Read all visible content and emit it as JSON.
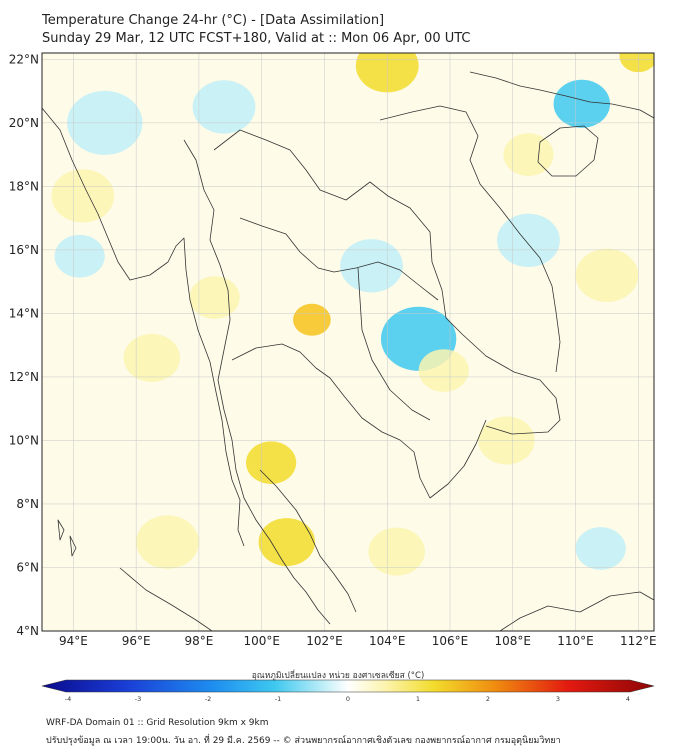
{
  "header": {
    "title_line1": "Temperature Change 24-hr (°C) - [Data Assimilation]",
    "title_line2": "Sunday 29 Mar, 12 UTC FCST+180, Valid at :: Mon 06 Apr, 00 UTC"
  },
  "map": {
    "lat_labels": [
      "22°N",
      "20°N",
      "18°N",
      "16°N",
      "14°N",
      "12°N",
      "10°N",
      "8°N",
      "6°N",
      "4°N"
    ],
    "lon_labels": [
      "94°E",
      "96°E",
      "98°E",
      "100°E",
      "102°E",
      "104°E",
      "106°E",
      "108°E",
      "110°E",
      "112°E"
    ],
    "lat_range": [
      4,
      22.2
    ],
    "lon_range": [
      93,
      112.5
    ],
    "anomalies": [
      {
        "lon": 105.0,
        "lat": 13.2,
        "value": -1.6,
        "r": 1.2
      },
      {
        "lon": 103.5,
        "lat": 15.5,
        "value": -1.0,
        "r": 1.0
      },
      {
        "lon": 110.2,
        "lat": 20.6,
        "value": -1.3,
        "r": 0.9
      },
      {
        "lon": 104.0,
        "lat": 21.8,
        "value": 1.0,
        "r": 1.0
      },
      {
        "lon": 101.6,
        "lat": 13.8,
        "value": 1.7,
        "r": 0.6
      },
      {
        "lon": 100.8,
        "lat": 6.8,
        "value": 1.2,
        "r": 0.9
      },
      {
        "lon": 100.3,
        "lat": 9.3,
        "value": 1.0,
        "r": 0.8
      },
      {
        "lon": 94.3,
        "lat": 17.7,
        "value": 0.8,
        "r": 1.0
      },
      {
        "lon": 98.5,
        "lat": 14.5,
        "value": 0.8,
        "r": 0.8
      },
      {
        "lon": 105.8,
        "lat": 12.2,
        "value": 0.8,
        "r": 0.8
      },
      {
        "lon": 107.8,
        "lat": 10.0,
        "value": 0.8,
        "r": 0.9
      },
      {
        "lon": 110.8,
        "lat": 6.6,
        "value": -0.8,
        "r": 0.8
      },
      {
        "lon": 96.5,
        "lat": 12.6,
        "value": 0.8,
        "r": 0.9
      },
      {
        "lon": 95.0,
        "lat": 20.0,
        "value": -0.6,
        "r": 1.2
      },
      {
        "lon": 98.8,
        "lat": 20.5,
        "value": -0.6,
        "r": 1.0
      },
      {
        "lon": 94.2,
        "lat": 15.8,
        "value": -0.5,
        "r": 0.8
      },
      {
        "lon": 108.5,
        "lat": 16.3,
        "value": -0.5,
        "r": 1.0
      },
      {
        "lon": 112.0,
        "lat": 22.1,
        "value": 1.0,
        "r": 0.6
      },
      {
        "lon": 97.0,
        "lat": 6.8,
        "value": 0.5,
        "r": 1.0
      },
      {
        "lon": 104.3,
        "lat": 6.5,
        "value": 0.6,
        "r": 0.9
      },
      {
        "lon": 111.0,
        "lat": 15.2,
        "value": 0.5,
        "r": 1.0
      },
      {
        "lon": 108.5,
        "lat": 19.0,
        "value": 0.6,
        "r": 0.8
      }
    ]
  },
  "colorbar": {
    "title": "อุณหภูมิเปลี่ยนแปลง หน่วย องศาเซลเซียส (°C)",
    "ticks": [
      "-4",
      "-3",
      "-2",
      "-1",
      "0",
      "1",
      "2",
      "3",
      "4"
    ],
    "range": [
      -4,
      4
    ],
    "colors": {
      "cold_deep": "#0a0a8c",
      "cold": "#1e5ff0",
      "cyan": "#3ec8f0",
      "pale_blue": "#bfeef8",
      "neutral": "#ffffff",
      "pale_yellow": "#fcf4b0",
      "yellow": "#f2dc2c",
      "orange": "#f08c10",
      "red": "#e21a10",
      "warm_deep": "#8c0505"
    }
  },
  "footer": {
    "line1": "WRF-DA Domain 01 :: Grid Resolution 9km x 9km",
    "line2": "ปรับปรุงข้อมูล ณ เวลา 19:00น. วัน อา. ที่ 29 มี.ค. 2569 -- © ส่วนพยากรณ์อากาศเชิงตัวเลข กองพยากรณ์อากาศ กรมอุตุนิยมวิทยา"
  }
}
